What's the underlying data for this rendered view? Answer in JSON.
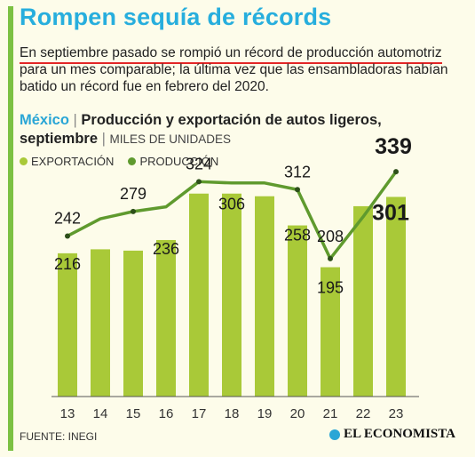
{
  "header": {
    "title": "Rompen sequía de récords",
    "description_line1": "En septiembre pasado se rompió un récord de producción automotriz",
    "description_rest": "para un mes comparable; la última vez que las ensambladoras habían batido un récord fue en febrero del 2020."
  },
  "subtitle": {
    "country": "México",
    "separator": "|",
    "text": "Producción y exportación de autos ligeros, septiembre",
    "units_separator": "|",
    "units": "MILES DE UNIDADES"
  },
  "legend": {
    "export_label": "EXPORTACIÓN",
    "production_label": "PRODUCCIÓN"
  },
  "colors": {
    "export": "#a9c938",
    "production": "#5f9a2e",
    "title": "#27aedd",
    "background": "#fdfcea",
    "underline": "#e32626"
  },
  "chart_data": {
    "type": "bar",
    "categories": [
      "13",
      "14",
      "15",
      "16",
      "17",
      "18",
      "19",
      "20",
      "21",
      "22",
      "23"
    ],
    "series": [
      {
        "name": "EXPORTACIÓN",
        "type": "bar",
        "values": [
          216,
          222,
          220,
          236,
          306,
          306,
          302,
          258,
          195,
          287,
          301
        ]
      },
      {
        "name": "PRODUCCIÓN",
        "type": "line",
        "values": [
          242,
          268,
          279,
          286,
          324,
          322,
          322,
          312,
          208,
          271,
          339
        ]
      }
    ],
    "labels_export": [
      {
        "index": 0,
        "text": "216"
      },
      {
        "index": 3,
        "text": "236"
      },
      {
        "index": 5,
        "text": "306"
      },
      {
        "index": 7,
        "text": "258"
      },
      {
        "index": 8,
        "text": "195"
      },
      {
        "index": 10,
        "text": "301"
      }
    ],
    "labels_production": [
      {
        "index": 0,
        "text": "242"
      },
      {
        "index": 2,
        "text": "279"
      },
      {
        "index": 4,
        "text": "324"
      },
      {
        "index": 7,
        "text": "312"
      },
      {
        "index": 8,
        "text": "208"
      },
      {
        "index": 10,
        "text": "339"
      }
    ],
    "ylim": [
      0,
      370
    ],
    "grid": false
  },
  "footer": {
    "source": "FUENTE: INEGI",
    "logo": "EL ECONOMISTA"
  }
}
